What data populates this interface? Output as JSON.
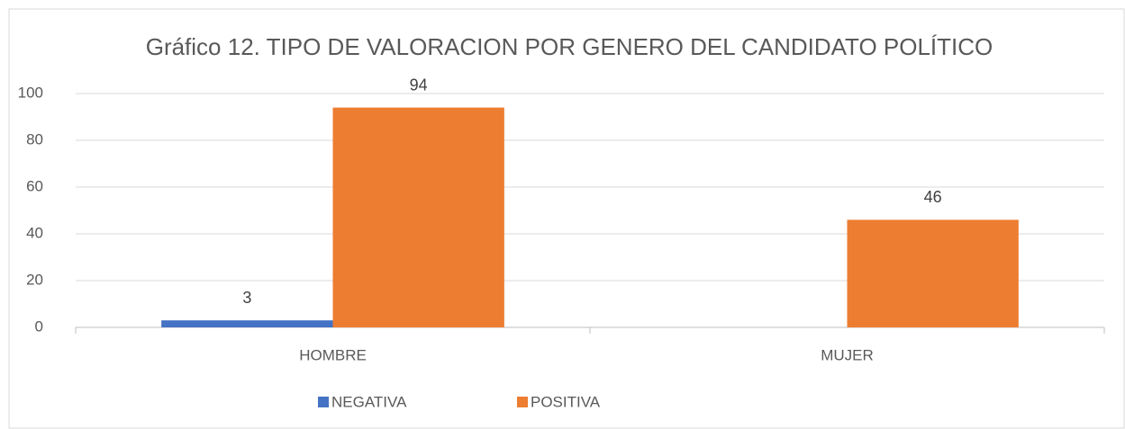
{
  "chart_data": {
    "type": "bar",
    "title": "Gráfico 12. TIPO DE VALORACION POR GENERO DEL CANDIDATO POLÍTICO",
    "categories": [
      "HOMBRE",
      "MUJER"
    ],
    "series": [
      {
        "name": "NEGATIVA",
        "color": "#4472c4",
        "values": [
          3,
          null
        ]
      },
      {
        "name": "POSITIVA",
        "color": "#ed7d31",
        "values": [
          94,
          46
        ]
      }
    ],
    "ylim": [
      0,
      100
    ],
    "yticks": [
      0,
      20,
      40,
      60,
      80,
      100
    ],
    "grid": true,
    "legend": "bottom"
  }
}
